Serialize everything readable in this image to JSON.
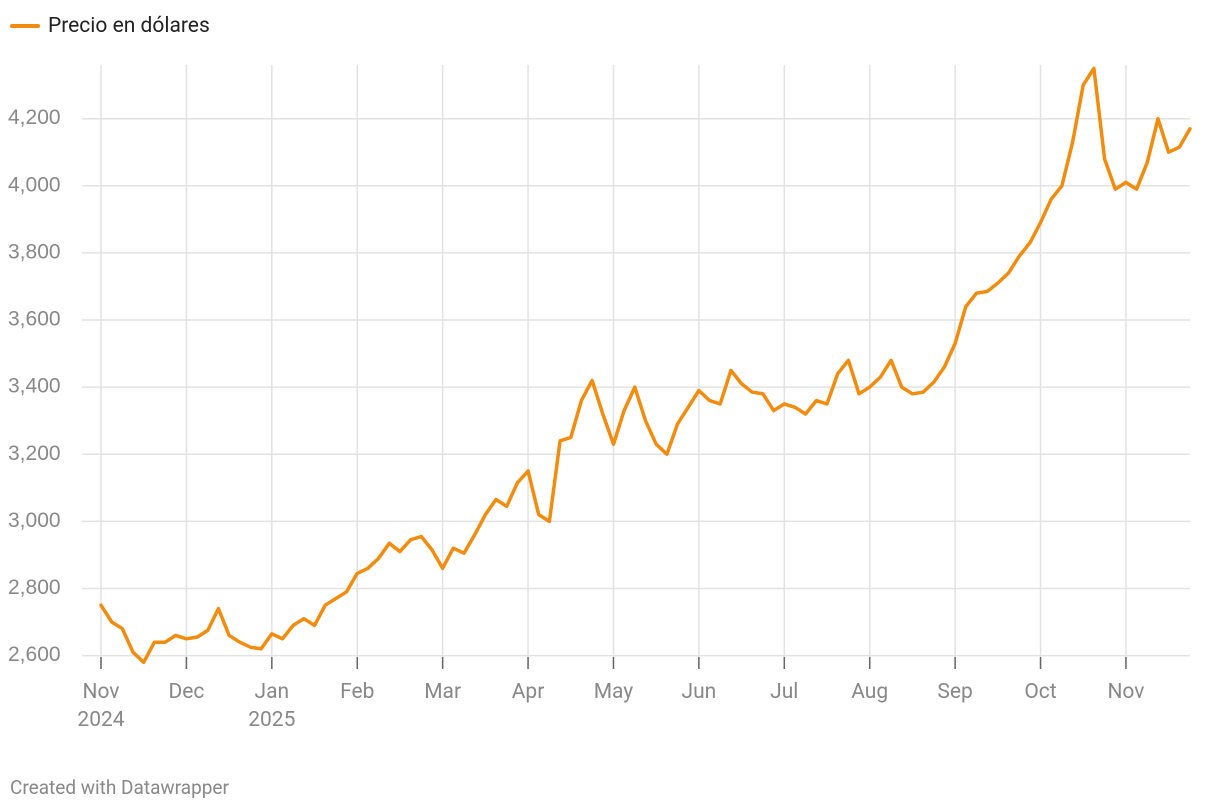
{
  "chart_data": {
    "type": "line",
    "series": [
      {
        "name": "Precio en dólares",
        "color": "#f28c0e",
        "values": [
          2750,
          2700,
          2680,
          2610,
          2580,
          2640,
          2640,
          2660,
          2650,
          2655,
          2675,
          2740,
          2660,
          2640,
          2625,
          2620,
          2665,
          2650,
          2690,
          2710,
          2690,
          2750,
          2770,
          2790,
          2845,
          2860,
          2890,
          2935,
          2910,
          2945,
          2955,
          2915,
          2860,
          2920,
          2905,
          2960,
          3020,
          3065,
          3045,
          3115,
          3150,
          3020,
          3000,
          3240,
          3250,
          3360,
          3420,
          3320,
          3230,
          3330,
          3400,
          3300,
          3230,
          3200,
          3290,
          3340,
          3390,
          3360,
          3350,
          3450,
          3410,
          3385,
          3380,
          3330,
          3350,
          3340,
          3320,
          3360,
          3350,
          3440,
          3480,
          3380,
          3400,
          3430,
          3480,
          3400,
          3380,
          3385,
          3415,
          3460,
          3530,
          3640,
          3680,
          3685,
          3710,
          3740,
          3790,
          3830,
          3890,
          3960,
          4000,
          4130,
          4300,
          4350,
          4080,
          3990,
          4010,
          3990,
          4070,
          4200,
          4100,
          4115,
          4170
        ]
      }
    ],
    "categories": [
      "Nov 2024",
      null,
      null,
      null,
      null,
      null,
      null,
      null,
      "Dec",
      null,
      null,
      null,
      null,
      null,
      null,
      null,
      "Jan 2025",
      null,
      null,
      null,
      null,
      null,
      null,
      null,
      "Feb",
      null,
      null,
      null,
      null,
      null,
      null,
      null,
      "Mar",
      null,
      null,
      null,
      null,
      null,
      null,
      null,
      "Apr",
      null,
      null,
      null,
      null,
      null,
      null,
      null,
      "May",
      null,
      null,
      null,
      null,
      null,
      null,
      null,
      "Jun",
      null,
      null,
      null,
      null,
      null,
      null,
      null,
      "Jul",
      null,
      null,
      null,
      null,
      null,
      null,
      null,
      "Aug",
      null,
      null,
      null,
      null,
      null,
      null,
      null,
      "Sep",
      null,
      null,
      null,
      null,
      null,
      null,
      null,
      "Oct",
      null,
      null,
      null,
      null,
      null,
      null,
      null,
      "Nov",
      null,
      null,
      null,
      null,
      null,
      null
    ],
    "ylim": [
      2560,
      4360
    ],
    "yticks": [
      {
        "value": 2600,
        "label": "2,600"
      },
      {
        "value": 2800,
        "label": "2,800"
      },
      {
        "value": 3000,
        "label": "3,000"
      },
      {
        "value": 3200,
        "label": "3,200"
      },
      {
        "value": 3400,
        "label": "3,400"
      },
      {
        "value": 3600,
        "label": "3,600"
      },
      {
        "value": 3800,
        "label": "3,800"
      },
      {
        "value": 4000,
        "label": "4,000"
      },
      {
        "value": 4200,
        "label": "4,200"
      }
    ],
    "grid": true,
    "legend": "top-left",
    "credit": "Created with Datawrapper"
  }
}
